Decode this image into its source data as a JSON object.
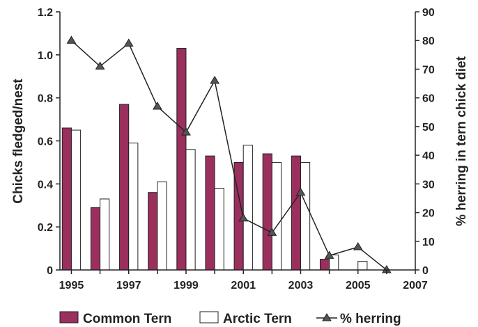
{
  "chart_data": {
    "type": "bar",
    "x": [
      1995,
      1996,
      1997,
      1998,
      1999,
      2000,
      2001,
      2002,
      2003,
      2004,
      2005,
      2006
    ],
    "series": [
      {
        "name": "Common Tern",
        "kind": "bar",
        "axis": "left",
        "color": "#9b2f5e",
        "values": [
          0.66,
          0.29,
          0.77,
          0.36,
          1.03,
          0.53,
          0.5,
          0.54,
          0.53,
          0.05,
          null,
          null
        ]
      },
      {
        "name": "Arctic Tern",
        "kind": "bar",
        "axis": "left",
        "color": "#ffffff",
        "values": [
          0.65,
          0.33,
          0.59,
          0.41,
          0.56,
          0.38,
          0.58,
          0.5,
          0.5,
          0.07,
          0.04,
          null
        ]
      },
      {
        "name": "% herring",
        "kind": "line",
        "axis": "right",
        "color": "#222222",
        "marker": "triangle",
        "values": [
          80,
          71,
          79,
          57,
          48,
          66,
          18,
          13,
          27,
          5,
          8,
          0
        ]
      }
    ],
    "xticks": [
      "1995",
      "1997",
      "1999",
      "2001",
      "2003",
      "2005",
      "2007"
    ],
    "xlim": [
      1994.6,
      2007
    ],
    "ylabel": "Chicks fledged/nest",
    "ylim": [
      0,
      1.2
    ],
    "yticks": [
      "0",
      "0.2",
      "0.4",
      "0.6",
      "0.8",
      "1.0",
      "1.2"
    ],
    "y2label": "% herring in tern chick diet",
    "y2lim": [
      0,
      90
    ],
    "y2ticks": [
      "0",
      "10",
      "20",
      "30",
      "40",
      "50",
      "60",
      "70",
      "80",
      "90"
    ],
    "grid": false,
    "legend": "bottom"
  }
}
